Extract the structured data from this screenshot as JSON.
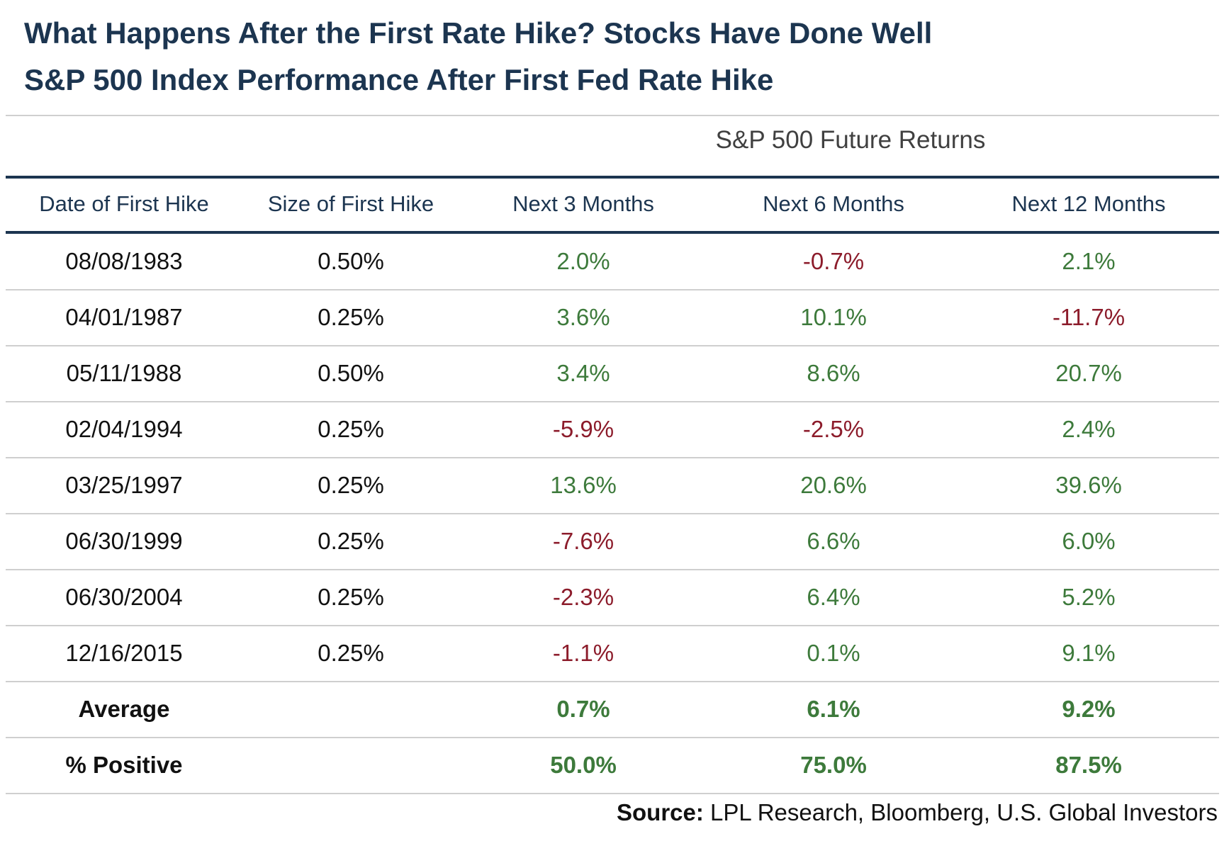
{
  "colors": {
    "title": "#1c3550",
    "positive": "#3d7a3b",
    "negative": "#8c1c2b",
    "text": "#111111",
    "rule_dark": "#1c3550",
    "rule_light": "#cfcfcf"
  },
  "title": {
    "line1": "What Happens After the First Rate Hike? Stocks Have Done Well",
    "line2": "S&P 500 Index Performance After First Fed Rate Hike"
  },
  "source": {
    "label": "Source:",
    "text": " LPL Research, Bloomberg, U.S. Global Investors"
  },
  "chart_data": {
    "type": "table",
    "group_header": "S&P 500 Future Returns",
    "columns": [
      "Date of First Hike",
      "Size of First Hike",
      "Next 3 Months",
      "Next 6 Months",
      "Next 12 Months"
    ],
    "rows": [
      [
        "08/08/1983",
        "0.50%",
        "2.0%",
        "-0.7%",
        "2.1%"
      ],
      [
        "04/01/1987",
        "0.25%",
        "3.6%",
        "10.1%",
        "-11.7%"
      ],
      [
        "05/11/1988",
        "0.50%",
        "3.4%",
        "8.6%",
        "20.7%"
      ],
      [
        "02/04/1994",
        "0.25%",
        "-5.9%",
        "-2.5%",
        "2.4%"
      ],
      [
        "03/25/1997",
        "0.25%",
        "13.6%",
        "20.6%",
        "39.6%"
      ],
      [
        "06/30/1999",
        "0.25%",
        "-7.6%",
        "6.6%",
        "6.0%"
      ],
      [
        "06/30/2004",
        "0.25%",
        "-2.3%",
        "6.4%",
        "5.2%"
      ],
      [
        "12/16/2015",
        "0.25%",
        "-1.1%",
        "0.1%",
        "9.1%"
      ]
    ],
    "summary_rows": [
      [
        "Average",
        "",
        "0.7%",
        "6.1%",
        "9.2%"
      ],
      [
        "% Positive",
        "",
        "50.0%",
        "75.0%",
        "87.5%"
      ]
    ]
  }
}
